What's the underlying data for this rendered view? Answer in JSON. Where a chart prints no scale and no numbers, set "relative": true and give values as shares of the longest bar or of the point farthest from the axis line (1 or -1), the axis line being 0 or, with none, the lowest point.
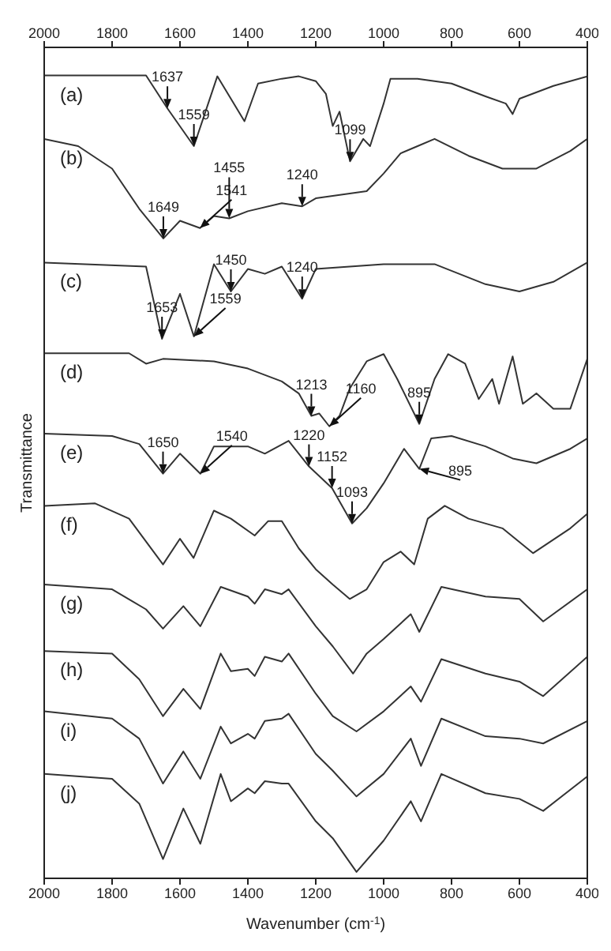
{
  "chart_data": {
    "type": "line",
    "relative": true,
    "xlabel": "Wavenumber (cm$^{-1}$)",
    "ylabel": "Transmittance",
    "xlim": [
      2000,
      400
    ],
    "xticks": [
      2000,
      1800,
      1600,
      1400,
      1200,
      1000,
      800,
      600,
      400
    ],
    "x2lim": [
      2000,
      400
    ],
    "x2ticks": [
      2000,
      1800,
      1600,
      1400,
      1200,
      1000,
      800,
      600,
      400
    ],
    "x": [
      2000,
      1800,
      1720,
      1650,
      1590,
      1540,
      1480,
      1450,
      1400,
      1380,
      1350,
      1300,
      1280,
      1200,
      1150,
      1080,
      1000,
      920,
      890,
      830,
      700,
      600,
      530,
      400
    ],
    "series": [
      {
        "name": "(a)",
        "color": "#333333",
        "x": [
          2000,
          1700,
          1637,
          1559,
          1490,
          1410,
          1370,
          1300,
          1250,
          1200,
          1170,
          1150,
          1130,
          1099,
          1060,
          1040,
          1000,
          980,
          900,
          800,
          700,
          640,
          620,
          600,
          500,
          400
        ],
        "values": [
          1,
          1,
          0.959,
          0.912,
          0.999,
          0.943,
          0.99,
          0.996,
          0.999,
          0.993,
          0.977,
          0.937,
          0.955,
          0.893,
          0.921,
          0.912,
          0.965,
          0.996,
          0.996,
          0.99,
          0.974,
          0.965,
          0.952,
          0.971,
          0.987,
          0.999
        ]
      },
      {
        "name": "(b)",
        "color": "#333333",
        "x": [
          2000,
          1900,
          1800,
          1720,
          1649,
          1600,
          1541,
          1500,
          1455,
          1400,
          1300,
          1240,
          1200,
          1100,
          1050,
          1000,
          950,
          900,
          850,
          750,
          650,
          550,
          450,
          400
        ],
        "values": [
          0.921,
          0.912,
          0.884,
          0.834,
          0.797,
          0.819,
          0.81,
          0.825,
          0.822,
          0.831,
          0.841,
          0.837,
          0.847,
          0.853,
          0.856,
          0.878,
          0.903,
          0.912,
          0.921,
          0.9,
          0.884,
          0.884,
          0.906,
          0.921
        ]
      },
      {
        "name": "(c)",
        "color": "#333333",
        "x": [
          2000,
          1700,
          1653,
          1600,
          1559,
          1500,
          1450,
          1400,
          1350,
          1300,
          1240,
          1200,
          1100,
          1000,
          850,
          700,
          600,
          500,
          400
        ],
        "values": [
          0.767,
          0.762,
          0.672,
          0.728,
          0.675,
          0.765,
          0.731,
          0.759,
          0.753,
          0.762,
          0.722,
          0.759,
          0.762,
          0.765,
          0.765,
          0.74,
          0.731,
          0.743,
          0.767
        ]
      },
      {
        "name": "(d)",
        "color": "#333333",
        "x": [
          2000,
          1750,
          1700,
          1650,
          1500,
          1400,
          1300,
          1250,
          1213,
          1190,
          1160,
          1130,
          1100,
          1050,
          1000,
          960,
          895,
          850,
          810,
          760,
          720,
          680,
          660,
          620,
          590,
          550,
          500,
          450,
          400
        ],
        "values": [
          0.654,
          0.654,
          0.641,
          0.647,
          0.644,
          0.635,
          0.619,
          0.604,
          0.576,
          0.579,
          0.563,
          0.576,
          0.61,
          0.644,
          0.653,
          0.622,
          0.566,
          0.622,
          0.653,
          0.641,
          0.597,
          0.622,
          0.591,
          0.65,
          0.591,
          0.604,
          0.585,
          0.585,
          0.647
        ]
      },
      {
        "name": "(e)",
        "color": "#333333",
        "x": [
          2000,
          1800,
          1720,
          1650,
          1600,
          1540,
          1500,
          1400,
          1350,
          1280,
          1220,
          1152,
          1093,
          1050,
          1000,
          940,
          895,
          860,
          800,
          700,
          620,
          550,
          450,
          400
        ],
        "values": [
          0.554,
          0.551,
          0.541,
          0.504,
          0.529,
          0.504,
          0.538,
          0.538,
          0.529,
          0.545,
          0.513,
          0.486,
          0.442,
          0.461,
          0.492,
          0.535,
          0.51,
          0.548,
          0.551,
          0.538,
          0.523,
          0.517,
          0.535,
          0.548
        ]
      },
      {
        "name": "(f)",
        "color": "#333333",
        "x": [
          2000,
          1850,
          1750,
          1650,
          1600,
          1560,
          1500,
          1450,
          1380,
          1340,
          1300,
          1250,
          1200,
          1150,
          1100,
          1050,
          1000,
          950,
          910,
          870,
          820,
          750,
          650,
          560,
          450,
          400
        ],
        "values": [
          0.464,
          0.467,
          0.448,
          0.391,
          0.423,
          0.399,
          0.458,
          0.448,
          0.427,
          0.445,
          0.445,
          0.411,
          0.385,
          0.366,
          0.348,
          0.36,
          0.394,
          0.407,
          0.391,
          0.448,
          0.464,
          0.448,
          0.436,
          0.405,
          0.436,
          0.454
        ]
      },
      {
        "name": "(g)",
        "color": "#333333",
        "x": [
          2000,
          1800,
          1700,
          1650,
          1590,
          1540,
          1480,
          1400,
          1380,
          1350,
          1300,
          1280,
          1200,
          1150,
          1090,
          1050,
          1000,
          920,
          895,
          830,
          700,
          600,
          530,
          400
        ],
        "values": [
          0.366,
          0.36,
          0.335,
          0.311,
          0.339,
          0.314,
          0.363,
          0.351,
          0.342,
          0.36,
          0.354,
          0.36,
          0.314,
          0.289,
          0.255,
          0.28,
          0.298,
          0.329,
          0.307,
          0.363,
          0.351,
          0.348,
          0.32,
          0.36
        ]
      },
      {
        "name": "(h)",
        "color": "#333333",
        "values": [
          0.283,
          0.28,
          0.248,
          0.202,
          0.236,
          0.211,
          0.28,
          0.258,
          0.261,
          0.252,
          0.276,
          0.27,
          0.28,
          0.23,
          0.202,
          0.183,
          0.208,
          0.239,
          0.22,
          0.273,
          0.255,
          0.245,
          0.227,
          0.276
        ]
      },
      {
        "name": "(i)",
        "color": "#333333",
        "values": [
          0.208,
          0.199,
          0.174,
          0.118,
          0.158,
          0.124,
          0.189,
          0.168,
          0.18,
          0.174,
          0.196,
          0.199,
          0.205,
          0.155,
          0.134,
          0.102,
          0.13,
          0.174,
          0.14,
          0.199,
          0.177,
          0.174,
          0.168,
          0.196
        ]
      },
      {
        "name": "(j)",
        "color": "#333333",
        "values": [
          0.13,
          0.124,
          0.093,
          0.024,
          0.087,
          0.043,
          0.13,
          0.096,
          0.112,
          0.106,
          0.121,
          0.118,
          0.118,
          0.071,
          0.05,
          0.008,
          0.047,
          0.096,
          0.071,
          0.13,
          0.106,
          0.099,
          0.084,
          0.127
        ]
      }
    ],
    "annotations": [
      {
        "text": "1637",
        "x": 1637,
        "y": 0.959
      },
      {
        "text": "1559",
        "x": 1559,
        "y": 0.912
      },
      {
        "text": "1099",
        "x": 1099,
        "y": 0.893
      },
      {
        "text": "1649",
        "x": 1649,
        "y": 0.797
      },
      {
        "text": "1541",
        "x": 1541,
        "y": 0.81
      },
      {
        "text": "1455",
        "x": 1455,
        "y": 0.822
      },
      {
        "text": "1240",
        "x": 1240,
        "y": 0.837
      },
      {
        "text": "1653",
        "x": 1653,
        "y": 0.672
      },
      {
        "text": "1559",
        "x": 1559,
        "y": 0.675
      },
      {
        "text": "1450",
        "x": 1450,
        "y": 0.731
      },
      {
        "text": "1240",
        "x": 1240,
        "y": 0.722
      },
      {
        "text": "1213",
        "x": 1213,
        "y": 0.576
      },
      {
        "text": "1160",
        "x": 1160,
        "y": 0.563
      },
      {
        "text": "895",
        "x": 895,
        "y": 0.566
      },
      {
        "text": "1650",
        "x": 1650,
        "y": 0.504
      },
      {
        "text": "1540",
        "x": 1540,
        "y": 0.504
      },
      {
        "text": "1220",
        "x": 1220,
        "y": 0.513
      },
      {
        "text": "1152",
        "x": 1152,
        "y": 0.486
      },
      {
        "text": "1093",
        "x": 1093,
        "y": 0.442
      },
      {
        "text": "895",
        "x": 895,
        "y": 0.51
      }
    ]
  }
}
